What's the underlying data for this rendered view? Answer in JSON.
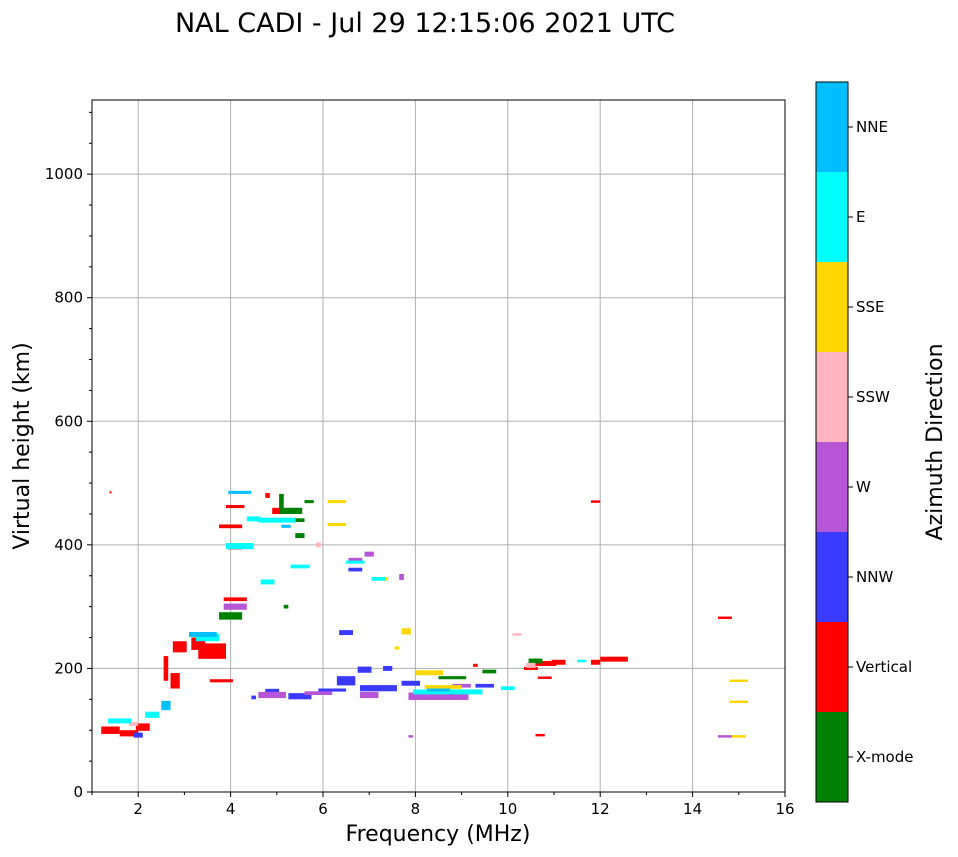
{
  "chart_data": {
    "type": "scatter",
    "title": "NAL CADI - Jul 29 12:15:06 2021 UTC",
    "xlabel": "Frequency (MHz)",
    "ylabel": "Virtual height (km)",
    "xlim": [
      1,
      16
    ],
    "ylim": [
      0,
      1120
    ],
    "xticks": [
      2,
      4,
      6,
      8,
      10,
      12,
      14,
      16
    ],
    "yticks": [
      0,
      200,
      400,
      600,
      800,
      1000
    ],
    "grid": true,
    "colorbar": {
      "label": "Azimuth Direction",
      "categories": [
        {
          "name": "X-mode",
          "color": "#008000"
        },
        {
          "name": "Vertical",
          "color": "#ff0000"
        },
        {
          "name": "NNW",
          "color": "#3a3aff"
        },
        {
          "name": "W",
          "color": "#b456d6"
        },
        {
          "name": "SSW",
          "color": "#ffb6c1"
        },
        {
          "name": "SSE",
          "color": "#ffd700"
        },
        {
          "name": "E",
          "color": "#00ffff"
        },
        {
          "name": "NNE",
          "color": "#00bfff"
        }
      ]
    },
    "series": [
      {
        "name": "Vertical",
        "points": [
          [
            1.4,
            100,
            0.4,
            12
          ],
          [
            1.8,
            95,
            0.4,
            10
          ],
          [
            2.1,
            105,
            0.3,
            12
          ],
          [
            2.6,
            200,
            0.1,
            40
          ],
          [
            2.8,
            180,
            0.2,
            25
          ],
          [
            2.9,
            235,
            0.3,
            18
          ],
          [
            3.3,
            240,
            0.3,
            20
          ],
          [
            3.6,
            228,
            0.6,
            25
          ],
          [
            3.8,
            180,
            0.5,
            5
          ],
          [
            4.0,
            430,
            0.5,
            6
          ],
          [
            4.1,
            462,
            0.4,
            5
          ],
          [
            4.1,
            395,
            0.3,
            5
          ],
          [
            4.1,
            312,
            0.5,
            6
          ],
          [
            4.8,
            480,
            0.1,
            8
          ],
          [
            5.0,
            455,
            0.2,
            10
          ],
          [
            9.3,
            205,
            0.1,
            5
          ],
          [
            10.5,
            200,
            0.3,
            5
          ],
          [
            10.8,
            208,
            0.5,
            8
          ],
          [
            11.1,
            210,
            0.3,
            8
          ],
          [
            11.9,
            210,
            0.2,
            8
          ],
          [
            12.3,
            215,
            0.6,
            8
          ],
          [
            10.8,
            185,
            0.3,
            4
          ],
          [
            11.9,
            470,
            0.2,
            4
          ],
          [
            14.7,
            282,
            0.3,
            4
          ],
          [
            10.7,
            92,
            0.2,
            4
          ]
        ]
      },
      {
        "name": "X-mode",
        "points": [
          [
            4.0,
            285,
            0.5,
            12
          ],
          [
            5.1,
            470,
            0.1,
            25
          ],
          [
            5.3,
            455,
            0.5,
            10
          ],
          [
            5.5,
            440,
            0.2,
            6
          ],
          [
            5.7,
            470,
            0.2,
            5
          ],
          [
            5.5,
            415,
            0.2,
            8
          ],
          [
            5.2,
            300,
            0.1,
            6
          ],
          [
            8.8,
            185,
            0.6,
            5
          ],
          [
            9.6,
            195,
            0.3,
            6
          ],
          [
            10.6,
            212,
            0.3,
            8
          ]
        ]
      },
      {
        "name": "NNW",
        "points": [
          [
            2.0,
            92,
            0.2,
            8
          ],
          [
            4.5,
            153,
            0.1,
            6
          ],
          [
            4.9,
            162,
            0.3,
            10
          ],
          [
            5.5,
            155,
            0.5,
            10
          ],
          [
            6.2,
            165,
            0.6,
            5
          ],
          [
            6.5,
            180,
            0.4,
            15
          ],
          [
            6.5,
            258,
            0.3,
            8
          ],
          [
            6.7,
            360,
            0.3,
            6
          ],
          [
            7.2,
            168,
            0.8,
            10
          ],
          [
            7.9,
            176,
            0.4,
            8
          ],
          [
            9.5,
            172,
            0.4,
            6
          ],
          [
            6.9,
            198,
            0.3,
            10
          ],
          [
            7.4,
            200,
            0.2,
            8
          ]
        ]
      },
      {
        "name": "W",
        "points": [
          [
            4.1,
            300,
            0.5,
            10
          ],
          [
            4.9,
            157,
            0.6,
            10
          ],
          [
            5.9,
            160,
            0.6,
            6
          ],
          [
            7.0,
            157,
            0.4,
            10
          ],
          [
            8.5,
            155,
            1.3,
            12
          ],
          [
            9.0,
            172,
            0.4,
            6
          ],
          [
            7.0,
            385,
            0.2,
            8
          ],
          [
            7.7,
            348,
            0.1,
            10
          ],
          [
            6.7,
            375,
            0.3,
            8
          ],
          [
            14.7,
            90,
            0.3,
            4
          ],
          [
            7.9,
            90,
            0.1,
            4
          ]
        ]
      },
      {
        "name": "SSW",
        "points": [
          [
            1.9,
            110,
            0.2,
            6
          ],
          [
            5.9,
            400,
            0.1,
            8
          ],
          [
            10.2,
            255,
            0.2,
            4
          ],
          [
            10.5,
            205,
            0.2,
            8
          ]
        ]
      },
      {
        "name": "SSE",
        "points": [
          [
            6.3,
            470,
            0.4,
            5
          ],
          [
            6.3,
            433,
            0.4,
            5
          ],
          [
            7.8,
            260,
            0.2,
            10
          ],
          [
            7.3,
            345,
            0.2,
            6
          ],
          [
            8.3,
            193,
            0.6,
            8
          ],
          [
            8.6,
            170,
            0.8,
            6
          ],
          [
            15.0,
            180,
            0.4,
            4
          ],
          [
            15.0,
            146,
            0.4,
            4
          ],
          [
            15.0,
            90,
            0.3,
            4
          ],
          [
            7.6,
            233,
            0.1,
            5
          ]
        ]
      },
      {
        "name": "E",
        "points": [
          [
            1.6,
            115,
            0.5,
            8
          ],
          [
            2.3,
            125,
            0.3,
            10
          ],
          [
            3.5,
            250,
            0.5,
            12
          ],
          [
            4.2,
            398,
            0.6,
            10
          ],
          [
            4.5,
            442,
            0.3,
            8
          ],
          [
            5.0,
            440,
            0.8,
            8
          ],
          [
            5.5,
            365,
            0.4,
            6
          ],
          [
            4.8,
            340,
            0.3,
            8
          ],
          [
            7.2,
            345,
            0.3,
            6
          ],
          [
            8.7,
            162,
            1.5,
            8
          ],
          [
            10.0,
            168,
            0.3,
            6
          ],
          [
            6.7,
            372,
            0.4,
            5
          ],
          [
            11.6,
            212,
            0.2,
            4
          ]
        ]
      },
      {
        "name": "NNE",
        "points": [
          [
            3.4,
            255,
            0.6,
            8
          ],
          [
            4.2,
            485,
            0.5,
            5
          ],
          [
            2.6,
            140,
            0.2,
            15
          ],
          [
            5.2,
            430,
            0.2,
            5
          ],
          [
            8.5,
            165,
            0.5,
            5
          ]
        ]
      }
    ],
    "isolated_points": [
      [
        1.4,
        485
      ]
    ]
  }
}
